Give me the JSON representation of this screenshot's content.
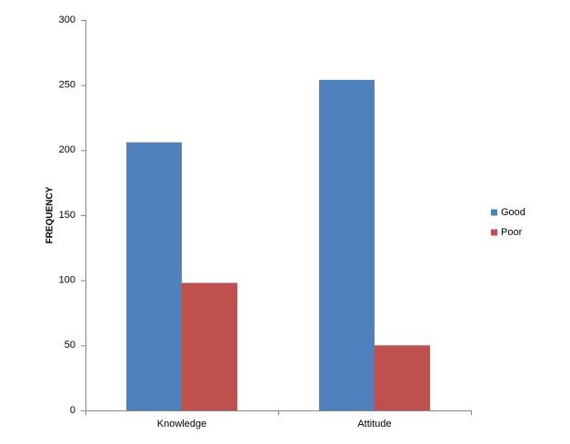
{
  "chart_data": {
    "type": "bar",
    "y_label": "FREQUENCY",
    "categories": [
      "Knowledge",
      "Attitude"
    ],
    "series": [
      {
        "name": "Good",
        "color": "#4f81bd",
        "values": [
          206,
          254
        ]
      },
      {
        "name": "Poor",
        "color": "#c0504d",
        "values": [
          98,
          50
        ]
      }
    ],
    "ylim": [
      0,
      300
    ],
    "yticks": [
      0,
      50,
      100,
      150,
      200,
      250,
      300
    ],
    "grid": false,
    "legend": "right"
  }
}
